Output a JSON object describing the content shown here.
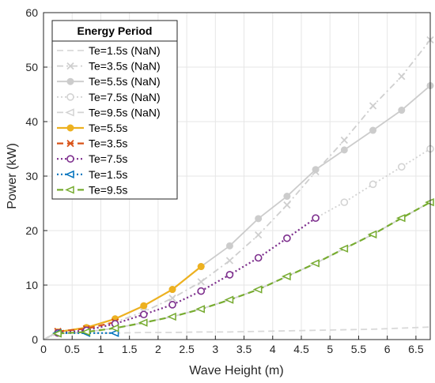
{
  "chart_data": {
    "type": "line",
    "xlabel": "Wave Height (m)",
    "ylabel": "Power (kW)",
    "xlim": [
      0,
      6.75
    ],
    "ylim": [
      0,
      60
    ],
    "xticks": [
      "0",
      "0.5",
      "1",
      "1.5",
      "2",
      "2.5",
      "3",
      "3.5",
      "4",
      "4.5",
      "5",
      "5.5",
      "6",
      "6.5"
    ],
    "yticks": [
      "0",
      "10",
      "20",
      "30",
      "40",
      "50",
      "60"
    ],
    "grid": true,
    "legend": {
      "title": "Energy Period",
      "location": "top-left"
    },
    "series": [
      {
        "name": "Te=1.5s (NaN)",
        "color": "#d9d9d9",
        "dash": "dashed",
        "marker": "none",
        "x": [
          0,
          0.25,
          0.75,
          1.25,
          1.75,
          2.25,
          2.75,
          3.25,
          3.75,
          4.25,
          4.75,
          5.25,
          5.75,
          6.25,
          6.75
        ],
        "y": [
          0,
          1.2,
          1.2,
          1.2,
          1.3,
          1.3,
          1.4,
          1.4,
          1.5,
          1.6,
          1.7,
          1.8,
          1.9,
          2.1,
          2.3
        ]
      },
      {
        "name": "Te=3.5s (NaN)",
        "color": "#cfcfcf",
        "dash": "dashdot",
        "marker": "x",
        "x": [
          0,
          0.25,
          0.75,
          1.25,
          1.75,
          2.25,
          2.75,
          3.25,
          3.75,
          4.25,
          4.75,
          5.25,
          5.75,
          6.25,
          6.75
        ],
        "y": [
          0,
          1.5,
          2.0,
          3.2,
          5.1,
          7.6,
          10.6,
          14.5,
          19.2,
          24.7,
          30.8,
          36.6,
          42.9,
          48.3,
          55.0
        ]
      },
      {
        "name": "Te=5.5s (NaN)",
        "color": "#cccccc",
        "dash": "solid",
        "marker": "circle-filled",
        "x": [
          0,
          0.25,
          0.75,
          1.25,
          1.75,
          2.25,
          2.75,
          3.25,
          3.75,
          4.25,
          4.75,
          5.25,
          5.75,
          6.25,
          6.75
        ],
        "y": [
          0,
          1.4,
          2.2,
          3.8,
          6.2,
          9.2,
          13.4,
          17.2,
          22.2,
          26.3,
          31.2,
          34.8,
          38.4,
          42.1,
          46.6
        ]
      },
      {
        "name": "Te=7.5s (NaN)",
        "color": "#d3d3d3",
        "dash": "dotted",
        "marker": "circle-open",
        "x": [
          0,
          0.25,
          0.75,
          1.25,
          1.75,
          2.25,
          2.75,
          3.25,
          3.75,
          4.25,
          4.75,
          5.25,
          5.75,
          6.25,
          6.75
        ],
        "y": [
          0,
          1.2,
          1.7,
          2.9,
          4.6,
          6.4,
          8.9,
          11.9,
          15.0,
          18.6,
          22.3,
          25.2,
          28.5,
          31.7,
          35.0
        ]
      },
      {
        "name": "Te=9.5s (NaN)",
        "color": "#d3d3d3",
        "dash": "dashed",
        "marker": "triangle-left",
        "x": [
          0,
          0.25,
          0.75,
          1.25,
          1.75,
          2.25,
          2.75,
          3.25,
          3.75,
          4.25,
          4.75,
          5.25,
          5.75,
          6.25,
          6.75
        ],
        "y": [
          0,
          1.1,
          1.4,
          2.1,
          3.1,
          4.2,
          5.6,
          7.3,
          9.2,
          11.6,
          14.0,
          16.7,
          19.3,
          22.3,
          25.2
        ]
      },
      {
        "name": "Te=5.5s",
        "color": "#edb120",
        "dash": "solid",
        "marker": "circle-filled",
        "x": [
          0.25,
          0.75,
          1.25,
          1.75,
          2.25,
          2.75
        ],
        "y": [
          1.4,
          2.2,
          3.8,
          6.2,
          9.2,
          13.4
        ]
      },
      {
        "name": "Te=3.5s",
        "color": "#d95319",
        "dash": "dashed",
        "marker": "x",
        "x": [
          0.25,
          0.75,
          1.25
        ],
        "y": [
          1.5,
          2.0,
          3.2
        ]
      },
      {
        "name": "Te=7.5s",
        "color": "#7e2f8e",
        "dash": "dotted",
        "marker": "circle-open",
        "x": [
          0.25,
          0.75,
          1.25,
          1.75,
          2.25,
          2.75,
          3.25,
          3.75,
          4.25,
          4.75
        ],
        "y": [
          1.2,
          1.7,
          2.9,
          4.6,
          6.4,
          8.9,
          11.9,
          15.0,
          18.6,
          22.3
        ]
      },
      {
        "name": "Te=1.5s",
        "color": "#0072bd",
        "dash": "dotted",
        "marker": "triangle-left",
        "x": [
          0.25,
          0.75,
          1.25
        ],
        "y": [
          1.2,
          1.2,
          1.2
        ]
      },
      {
        "name": "Te=9.5s",
        "color": "#77ac30",
        "dash": "dashed",
        "marker": "triangle-left",
        "x": [
          0.25,
          0.75,
          1.25,
          1.75,
          2.25,
          2.75,
          3.25,
          3.75,
          4.25,
          4.75,
          5.25,
          5.75,
          6.25,
          6.75
        ],
        "y": [
          1.1,
          1.4,
          2.1,
          3.1,
          4.2,
          5.6,
          7.3,
          9.2,
          11.6,
          14.0,
          16.7,
          19.3,
          22.3,
          25.2
        ]
      }
    ]
  }
}
